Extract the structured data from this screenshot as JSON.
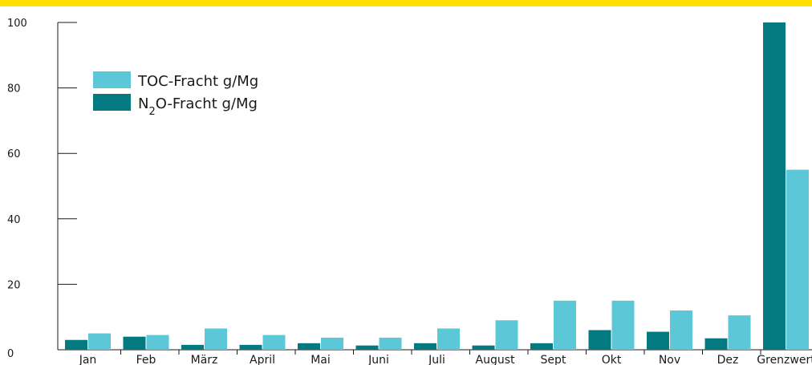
{
  "colors": {
    "banner": "#ffde00",
    "toc": "#5bc7d7",
    "n2o": "#027a80",
    "axis": "#1a1a1a"
  },
  "chart_data": {
    "type": "bar",
    "title": "",
    "xlabel": "",
    "ylabel": "",
    "ylim": [
      0,
      100
    ],
    "yticks": [
      0,
      20,
      40,
      60,
      80,
      100
    ],
    "grid": false,
    "legend_position": "top-left",
    "categories": [
      "Jan",
      "Feb",
      "März",
      "April",
      "Mai",
      "Juni",
      "Juli",
      "August",
      "Sept",
      "Okt",
      "Nov",
      "Dez",
      "Grenzwert"
    ],
    "series": [
      {
        "name": "N2O-Fracht g/Mg",
        "label": {
          "base": "N",
          "sub": "2",
          "rest": "O-Fracht g/Mg"
        },
        "color": "#027a80",
        "values": [
          3,
          4,
          1.5,
          1.5,
          2,
          1.3,
          2,
          1.3,
          2,
          6,
          5.5,
          3.5,
          100
        ]
      },
      {
        "name": "TOC-Fracht g/Mg",
        "label": {
          "base": "TOC-Fracht g/Mg",
          "sub": "",
          "rest": ""
        },
        "color": "#5bc7d7",
        "values": [
          5,
          4.5,
          6.5,
          4.5,
          3.7,
          3.7,
          6.5,
          9,
          15,
          15,
          12,
          10.5,
          55
        ]
      }
    ]
  }
}
